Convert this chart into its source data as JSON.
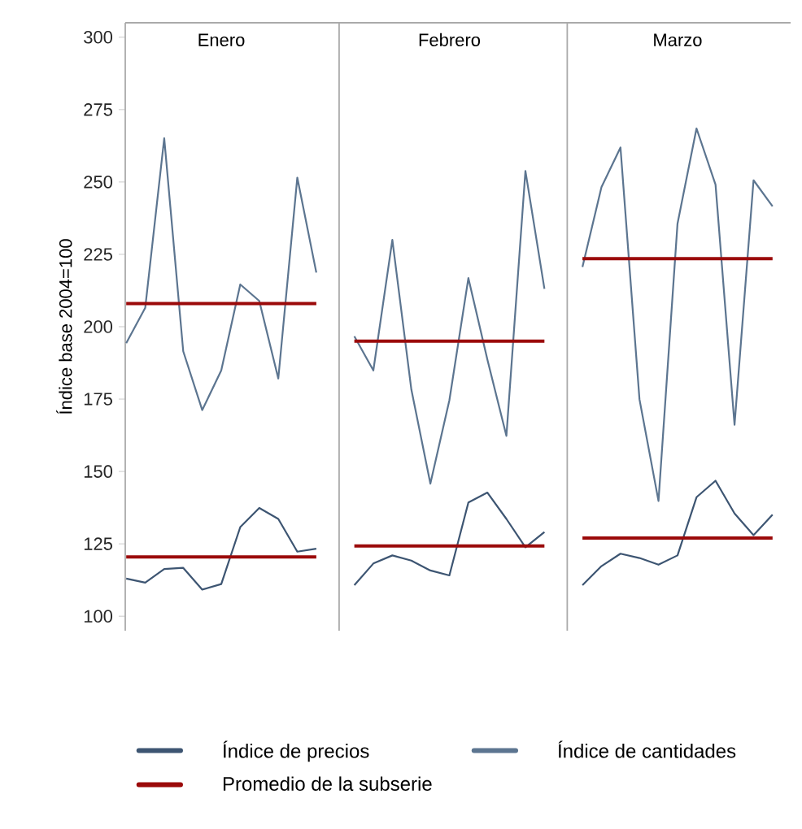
{
  "chart_data": {
    "type": "line",
    "ylabel": "Índice base 2004=100",
    "categories": [
      null,
      null,
      null,
      null,
      null,
      "Enero",
      null,
      null,
      null,
      null,
      null,
      null,
      null,
      null,
      null,
      null,
      null,
      "Febrero",
      null,
      null,
      null,
      null,
      null,
      null,
      null,
      null,
      null,
      null,
      null,
      "Marzo",
      null,
      null,
      null,
      null,
      null
    ],
    "ylim": [
      95,
      305
    ],
    "yticks": [
      100,
      125,
      150,
      175,
      200,
      225,
      250,
      275,
      300
    ],
    "legend": "bottom",
    "series": [
      {
        "name": "Índice de precios",
        "color": "#3d5572",
        "values": [
          113.0,
          111.6,
          116.3,
          116.7,
          109.2,
          111.1,
          130.8,
          137.4,
          133.6,
          122.3,
          123.3,
          null,
          110.7,
          118.2,
          121.0,
          119.2,
          115.8,
          114.1,
          139.3,
          142.7,
          133.6,
          123.8,
          129.1,
          null,
          110.7,
          117.3,
          121.6,
          120.1,
          117.8,
          121.0,
          141.1,
          146.8,
          135.5,
          128.0,
          135.1
        ]
      },
      {
        "name": "Índice de cantidades",
        "color": "#5c7590",
        "values": [
          194.3,
          206.5,
          265.1,
          191.5,
          171.2,
          184.9,
          214.6,
          208.9,
          182.1,
          251.5,
          218.7,
          null,
          196.7,
          184.9,
          230.0,
          178.3,
          145.8,
          174.6,
          216.8,
          188.6,
          162.3,
          253.8,
          213.1,
          null,
          220.6,
          248.2,
          261.9,
          174.9,
          139.8,
          235.6,
          268.5,
          249.1,
          166.1,
          250.6,
          241.6
        ]
      },
      {
        "name": "Promedio de la subserie",
        "color": "#9b0a0a",
        "values": [
          208,
          208,
          208,
          208,
          208,
          208,
          208,
          208,
          208,
          208,
          208,
          null,
          195,
          195,
          195,
          195,
          195,
          195,
          195,
          195,
          195,
          195,
          195,
          null,
          223.5,
          223.5,
          223.5,
          223.5,
          223.5,
          223.5,
          223.5,
          223.5,
          223.5,
          223.5,
          223.5
        ]
      },
      {
        "color": "#9b0a0a",
        "values": [
          120.5,
          120.5,
          120.5,
          120.5,
          120.5,
          120.5,
          120.5,
          120.5,
          120.5,
          120.5,
          120.5,
          null,
          124.3,
          124.3,
          124.3,
          124.3,
          124.3,
          124.3,
          124.3,
          124.3,
          124.3,
          124.3,
          124.3,
          null,
          127,
          127,
          127,
          127,
          127,
          127,
          127,
          127,
          127,
          127,
          127
        ]
      }
    ]
  }
}
